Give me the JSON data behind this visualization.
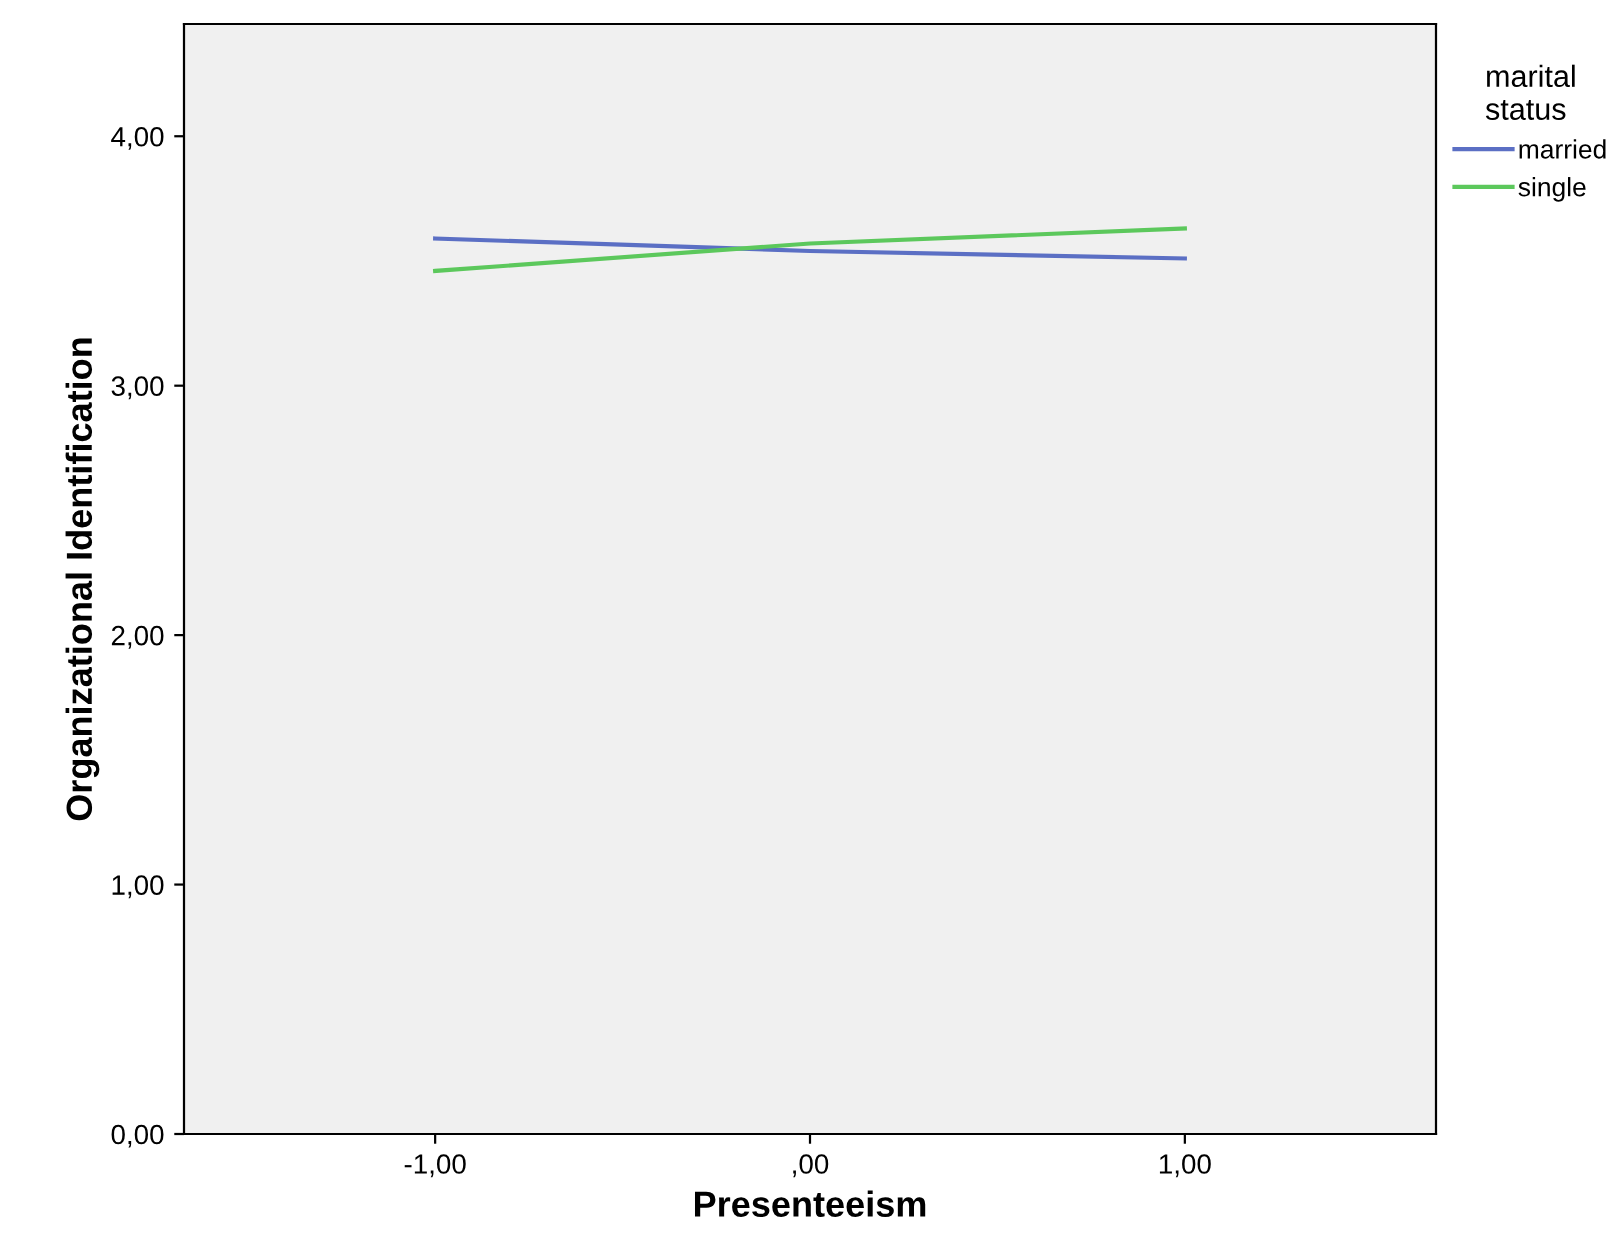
{
  "chart_data": {
    "type": "line",
    "xlabel": "Presenteeism",
    "ylabel": "Organizational Identification",
    "legend_title": "marital\nstatus",
    "x": [
      -1,
      0,
      1
    ],
    "series": [
      {
        "name": "married",
        "color": "#5b6fc4",
        "values": [
          3.59,
          3.54,
          3.51
        ]
      },
      {
        "name": "single",
        "color": "#5cc85c",
        "values": [
          3.46,
          3.57,
          3.63
        ]
      }
    ],
    "xlim": [
      -1.67,
      1.67
    ],
    "xticks": [
      {
        "value": -1,
        "label": "-1,00"
      },
      {
        "value": 0,
        "label": ",00"
      },
      {
        "value": 1,
        "label": "1,00"
      }
    ],
    "ylim": [
      0,
      4.45
    ],
    "yticks": [
      {
        "value": 0,
        "label": "0,00"
      },
      {
        "value": 1,
        "label": "1,00"
      },
      {
        "value": 2,
        "label": "2,00"
      },
      {
        "value": 3,
        "label": "3,00"
      },
      {
        "value": 4,
        "label": "4,00"
      }
    ],
    "grid": false,
    "legend": "top right",
    "marker": "none",
    "line_style": "solid"
  }
}
